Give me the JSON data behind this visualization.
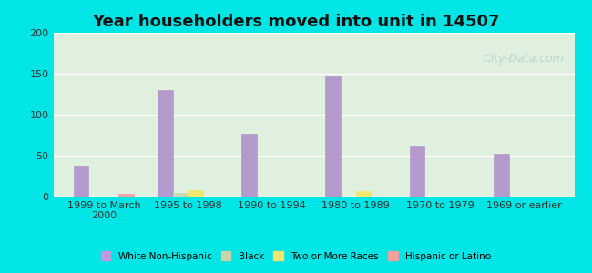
{
  "title": "Year householders moved into unit in 14507",
  "categories": [
    "1999 to March\n2000",
    "1995 to 1998",
    "1990 to 1994",
    "1980 to 1989",
    "1970 to 1979",
    "1969 or earlier"
  ],
  "series": {
    "White Non-Hispanic": [
      38,
      130,
      77,
      147,
      62,
      52
    ],
    "Black": [
      0,
      5,
      0,
      0,
      0,
      0
    ],
    "Two or More Races": [
      0,
      8,
      0,
      7,
      0,
      0
    ],
    "Hispanic or Latino": [
      3,
      0,
      0,
      0,
      0,
      0
    ]
  },
  "colors": {
    "White Non-Hispanic": "#b399cc",
    "Black": "#c8d9b0",
    "Two or More Races": "#f0e96e",
    "Hispanic or Latino": "#f5a0a0"
  },
  "legend_colors": {
    "White Non-Hispanic": "#c099d9",
    "Black": "#c8d4a8",
    "Two or More Races": "#f0e96e",
    "Hispanic or Latino": "#f5a0a0"
  },
  "ylim": [
    0,
    200
  ],
  "yticks": [
    0,
    50,
    100,
    150,
    200
  ],
  "bar_width": 0.18,
  "background_outer": "#00e5e5",
  "background_inner": "#dff0df",
  "watermark": "City-Data.com"
}
